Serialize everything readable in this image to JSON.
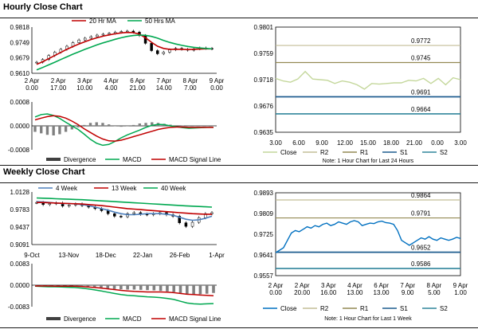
{
  "sections": {
    "hourly_title": "Hourly Close Chart",
    "weekly_title": "Weekly Close Chart"
  },
  "colors": {
    "ma_short": "#c00000",
    "ma_long": "#00a850",
    "divergence": "#808080",
    "macd": "#00a850",
    "macd_signal": "#c00000",
    "close_hourly": "#c4d79b",
    "close_weekly": "#0070c0",
    "r2": "#c4bd97",
    "r1": "#948a54",
    "s1": "#1f5d8f",
    "s2": "#31859c"
  },
  "chart_data": [
    {
      "id": "hourly-price",
      "type": "candlestick",
      "x_ticks": [
        "2 Apr\n0.00",
        "2 Apr\n17.00",
        "3 Apr\n10.00",
        "4 Apr\n4.00",
        "6 Apr\n21.00",
        "7 Apr\n14.00",
        "8 Apr\n7.00",
        "9 Apr\n0.00"
      ],
      "y_ticks": [
        "0.9818",
        "0.9749",
        "0.9679",
        "0.9610"
      ],
      "ylim": [
        0.961,
        0.9818
      ],
      "legend": [
        "20 Hr MA",
        "50 Hrs MA"
      ],
      "close": [
        0.966,
        0.9672,
        0.969,
        0.9705,
        0.9718,
        0.9732,
        0.9748,
        0.976,
        0.9768,
        0.9775,
        0.9782,
        0.9786,
        0.979,
        0.9795,
        0.9798,
        0.98,
        0.9795,
        0.978,
        0.9745,
        0.9712,
        0.9698,
        0.9705,
        0.9716,
        0.9722,
        0.9718,
        0.9714,
        0.972,
        0.9724,
        0.9722,
        0.972
      ],
      "ma20": [
        0.965,
        0.9662,
        0.9676,
        0.969,
        0.9704,
        0.9718,
        0.973,
        0.9742,
        0.9752,
        0.9762,
        0.977,
        0.9777,
        0.9783,
        0.9788,
        0.9792,
        0.9794,
        0.9793,
        0.9786,
        0.977,
        0.975,
        0.9732,
        0.9722,
        0.9718,
        0.9718,
        0.9718,
        0.9717,
        0.9718,
        0.9719,
        0.972,
        0.972
      ],
      "ma50": [
        0.9625,
        0.9636,
        0.9648,
        0.966,
        0.9672,
        0.9684,
        0.9696,
        0.9707,
        0.9718,
        0.9728,
        0.9738,
        0.9747,
        0.9755,
        0.9763,
        0.977,
        0.9776,
        0.978,
        0.9782,
        0.9781,
        0.9776,
        0.9768,
        0.9758,
        0.9749,
        0.9742,
        0.9736,
        0.9731,
        0.9727,
        0.9724,
        0.9722,
        0.972
      ]
    },
    {
      "id": "hourly-macd",
      "type": "bar-line",
      "y_ticks": [
        "0.0008",
        "0.0000",
        "-0.0008"
      ],
      "ylim": [
        -0.0008,
        0.0008
      ],
      "legend": [
        "Divergence",
        "MACD",
        "MACD Signal Line"
      ],
      "divergence": [
        -0.0002,
        -0.00025,
        -0.0003,
        -0.00032,
        -0.00028,
        -0.0002,
        -0.00012,
        -5e-05,
        3e-05,
        0.0001,
        0.00012,
        0.0001,
        5e-05,
        0.0,
        -3e-05,
        0.0,
        3e-05,
        8e-05,
        0.0001,
        0.00012,
        0.0001,
        7e-05,
        4e-05,
        2e-05,
        1e-05,
        0.0,
        0.0,
        0.0,
        0.0,
        0.0
      ],
      "macd": [
        0.0003,
        0.00038,
        0.0004,
        0.00035,
        0.00025,
        0.00012,
        0.0,
        -0.00012,
        -0.00028,
        -0.00045,
        -0.00058,
        -0.00065,
        -0.00062,
        -0.00052,
        -0.0004,
        -0.0003,
        -0.00022,
        -0.00014,
        -5e-05,
        2e-05,
        5e-05,
        4e-05,
        0.0,
        -3e-05,
        -6e-05,
        -8e-05,
        -7e-05,
        -6e-05,
        -5e-05,
        -5e-05
      ],
      "signal": [
        0.0002,
        0.00026,
        0.00031,
        0.00034,
        0.00032,
        0.00026,
        0.00016,
        4e-05,
        -0.0001,
        -0.00022,
        -0.00034,
        -0.00044,
        -0.0005,
        -0.00051,
        -0.00048,
        -0.00042,
        -0.00036,
        -0.0003,
        -0.00024,
        -0.00018,
        -0.00012,
        -8e-05,
        -5e-05,
        -4e-05,
        -4e-05,
        -5e-05,
        -5e-05,
        -5e-05,
        -5e-05,
        -5e-05
      ]
    },
    {
      "id": "hourly-levels",
      "type": "line",
      "x_ticks": [
        "3.00",
        "6.00",
        "9.00",
        "12.00",
        "15.00",
        "18.00",
        "21.00",
        "0.00",
        "3.00"
      ],
      "y_ticks": [
        "0.9801",
        "0.9759",
        "0.9718",
        "0.9676",
        "0.9635"
      ],
      "ylim": [
        0.9635,
        0.9801
      ],
      "levels": {
        "R2": 0.9772,
        "R1": 0.9745,
        "S1": 0.9691,
        "S2": 0.9664
      },
      "level_labels": [
        "0.9772",
        "0.9745",
        "0.9691",
        "0.9664"
      ],
      "close": [
        0.972,
        0.9716,
        0.9714,
        0.9719,
        0.9731,
        0.9719,
        0.9718,
        0.9717,
        0.9712,
        0.9716,
        0.9714,
        0.971,
        0.9703,
        0.9712,
        0.9711,
        0.9712,
        0.9713,
        0.9713,
        0.9717,
        0.9716,
        0.972,
        0.9712,
        0.972,
        0.971,
        0.9721,
        0.9718
      ],
      "legend": [
        "Close",
        "R2",
        "R1",
        "S1",
        "S2"
      ],
      "note": "Note: 1 Hour Chart for Last 24 Hours"
    },
    {
      "id": "weekly-price",
      "type": "candlestick",
      "x_ticks": [
        "9-Oct",
        "13-Nov",
        "18-Dec",
        "22-Jan",
        "26-Feb",
        "1-Apr"
      ],
      "y_ticks": [
        "1.0128",
        "0.9783",
        "0.9437",
        "0.9091"
      ],
      "ylim": [
        0.9091,
        1.0128
      ],
      "legend": [
        "4 Week",
        "13 Week",
        "40 Week"
      ],
      "close": [
        0.992,
        0.988,
        0.99,
        0.991,
        0.985,
        0.987,
        0.989,
        0.986,
        0.983,
        0.98,
        0.976,
        0.97,
        0.965,
        0.964,
        0.97,
        0.972,
        0.969,
        0.968,
        0.97,
        0.972,
        0.968,
        0.965,
        0.952,
        0.945,
        0.953,
        0.962,
        0.97,
        0.972
      ],
      "ma4": [
        0.994,
        0.993,
        0.992,
        0.991,
        0.99,
        0.99,
        0.989,
        0.988,
        0.986,
        0.983,
        0.98,
        0.977,
        0.973,
        0.97,
        0.968,
        0.968,
        0.969,
        0.97,
        0.97,
        0.97,
        0.969,
        0.967,
        0.963,
        0.959,
        0.957,
        0.958,
        0.961,
        0.965
      ],
      "ma13": [
        0.992,
        0.992,
        0.9915,
        0.991,
        0.9905,
        0.99,
        0.9895,
        0.989,
        0.988,
        0.987,
        0.986,
        0.9845,
        0.983,
        0.9815,
        0.98,
        0.979,
        0.978,
        0.977,
        0.976,
        0.975,
        0.974,
        0.973,
        0.972,
        0.971,
        0.97,
        0.9695,
        0.969,
        0.969
      ],
      "ma40": [
        1.001,
        1.0005,
        1.0,
        0.9995,
        0.999,
        0.9985,
        0.998,
        0.9975,
        0.9968,
        0.996,
        0.9952,
        0.9945,
        0.9938,
        0.993,
        0.9922,
        0.9915,
        0.9908,
        0.99,
        0.9893,
        0.9886,
        0.9878,
        0.987,
        0.9862,
        0.9855,
        0.9848,
        0.9842,
        0.9836,
        0.983
      ]
    },
    {
      "id": "weekly-macd",
      "type": "bar-line",
      "y_ticks": [
        "0.0083",
        "0.0000",
        "-0.0083"
      ],
      "ylim": [
        -0.0083,
        0.0083
      ],
      "legend": [
        "Divergence",
        "MACD",
        "MACD Signal Line"
      ],
      "divergence": [
        -0.0001,
        -0.0002,
        -0.0003,
        -0.0002,
        -0.0003,
        -0.0004,
        -0.0005,
        -0.0006,
        -0.0007,
        -0.0009,
        -0.0011,
        -0.0013,
        -0.0015,
        -0.0016,
        -0.0017,
        -0.0017,
        -0.0018,
        -0.0019,
        -0.002,
        -0.0022,
        -0.0024,
        -0.0026,
        -0.003,
        -0.0034,
        -0.0036,
        -0.0035,
        -0.0033,
        -0.003
      ],
      "macd": [
        -0.0004,
        -0.0005,
        -0.0006,
        -0.0006,
        -0.0007,
        -0.0008,
        -0.0009,
        -0.0011,
        -0.0014,
        -0.0018,
        -0.0022,
        -0.0027,
        -0.0032,
        -0.0036,
        -0.0039,
        -0.0041,
        -0.0043,
        -0.0045,
        -0.0046,
        -0.0048,
        -0.0051,
        -0.0055,
        -0.0062,
        -0.0069,
        -0.0072,
        -0.0073,
        -0.0072,
        -0.0071
      ],
      "signal": [
        -0.0003,
        -0.0003,
        -0.0003,
        -0.0004,
        -0.0004,
        -0.0004,
        -0.0004,
        -0.0005,
        -0.0007,
        -0.0009,
        -0.0011,
        -0.0014,
        -0.0017,
        -0.002,
        -0.0022,
        -0.0024,
        -0.0025,
        -0.0026,
        -0.0026,
        -0.0026,
        -0.0027,
        -0.0029,
        -0.0032,
        -0.0035,
        -0.0036,
        -0.0038,
        -0.0039,
        -0.0041
      ]
    },
    {
      "id": "weekly-levels",
      "type": "line",
      "x_ticks": [
        "2 Apr\n0.00",
        "2 Apr\n20.00",
        "3 Apr\n16.00",
        "4 Apr\n13.00",
        "6 Apr\n13.00",
        "7 Apr\n9.00",
        "8 Apr\n5.00",
        "9 Apr\n1.00"
      ],
      "y_ticks": [
        "0.9893",
        "0.9809",
        "0.9725",
        "0.9641",
        "0.9557"
      ],
      "ylim": [
        0.9557,
        0.9893
      ],
      "levels": {
        "R2": 0.9864,
        "R1": 0.9791,
        "S1": 0.9652,
        "S2": 0.9586
      },
      "level_labels": [
        "0.9864",
        "0.9791",
        "0.9652",
        "0.9586"
      ],
      "close": [
        0.965,
        0.966,
        0.967,
        0.97,
        0.973,
        0.974,
        0.9735,
        0.9745,
        0.9755,
        0.975,
        0.976,
        0.9755,
        0.9765,
        0.977,
        0.976,
        0.9765,
        0.9775,
        0.977,
        0.9765,
        0.9775,
        0.978,
        0.9775,
        0.976,
        0.9765,
        0.977,
        0.9768,
        0.9775,
        0.9778,
        0.9772,
        0.977,
        0.9765,
        0.974,
        0.97,
        0.969,
        0.968,
        0.969,
        0.97,
        0.971,
        0.9705,
        0.9715,
        0.9705,
        0.97,
        0.971,
        0.9705,
        0.97,
        0.9705,
        0.9712,
        0.9708
      ],
      "legend": [
        "Close",
        "R2",
        "R1",
        "S1",
        "S2"
      ],
      "note": "Note: 1 Hour Chart for Last 1 Week"
    }
  ]
}
